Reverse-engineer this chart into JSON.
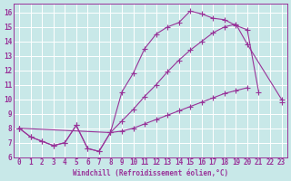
{
  "xlabel": "Windchill (Refroidissement éolien,°C)",
  "bg_color": "#c8e8e8",
  "grid_color": "#ffffff",
  "line_color": "#993399",
  "xlim": [
    -0.5,
    23.5
  ],
  "ylim": [
    6.0,
    16.6
  ],
  "xticks": [
    0,
    1,
    2,
    3,
    4,
    5,
    6,
    7,
    8,
    9,
    10,
    11,
    12,
    13,
    14,
    15,
    16,
    17,
    18,
    19,
    20,
    21,
    22,
    23
  ],
  "yticks": [
    6,
    7,
    8,
    9,
    10,
    11,
    12,
    13,
    14,
    15,
    16
  ],
  "line1_x": [
    0,
    1,
    2,
    3,
    4,
    5,
    6,
    7,
    8,
    9,
    10,
    11,
    12,
    13,
    14,
    15,
    16,
    17,
    18,
    19,
    20,
    21
  ],
  "line1_y": [
    8.0,
    7.4,
    7.1,
    6.8,
    7.0,
    8.2,
    6.6,
    6.4,
    7.7,
    10.5,
    11.8,
    13.5,
    14.5,
    15.0,
    15.3,
    16.1,
    15.9,
    15.6,
    15.5,
    15.1,
    14.8,
    10.5
  ],
  "line2_x": [
    0,
    8,
    9,
    10,
    11,
    12,
    13,
    14,
    15,
    16,
    17,
    18,
    19,
    20,
    23
  ],
  "line2_y": [
    8.0,
    7.7,
    8.5,
    9.3,
    10.2,
    11.0,
    11.9,
    12.7,
    13.4,
    14.0,
    14.6,
    15.0,
    15.2,
    13.8,
    10.0
  ],
  "line3_x": [
    0,
    1,
    2,
    3,
    4,
    5,
    6,
    7,
    8,
    9,
    10,
    11,
    12,
    13,
    14,
    15,
    16,
    17,
    18,
    19,
    20,
    21,
    22,
    23
  ],
  "line3_y": [
    8.0,
    7.4,
    7.1,
    6.8,
    7.0,
    8.2,
    6.6,
    6.4,
    7.7,
    7.8,
    8.0,
    8.3,
    8.6,
    8.9,
    9.2,
    9.5,
    9.8,
    10.1,
    10.4,
    10.6,
    10.8,
    null,
    null,
    9.8
  ]
}
